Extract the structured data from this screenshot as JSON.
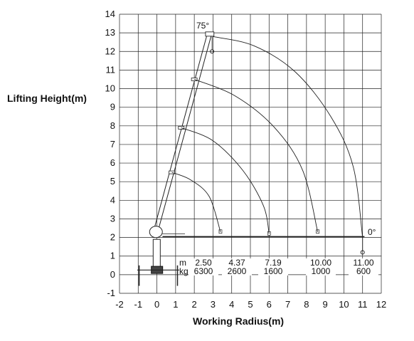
{
  "chart_data": {
    "type": "line",
    "xlabel": "Working Radius(m)",
    "ylabel": "Lifting Height(m)",
    "xlim": [
      -2,
      12
    ],
    "ylim": [
      -1,
      14
    ],
    "grid": true,
    "x_ticks": [
      "-2",
      "-1",
      "0",
      "1",
      "2",
      "3",
      "4",
      "5",
      "6",
      "7",
      "8",
      "9",
      "10",
      "11",
      "12"
    ],
    "y_ticks": [
      "-1",
      "0",
      "1",
      "2",
      "3",
      "4",
      "5",
      "6",
      "7",
      "8",
      "9",
      "10",
      "11",
      "12",
      "13",
      "14"
    ],
    "series": [
      {
        "points": [
          [
            0.8,
            5.5
          ],
          [
            1.8,
            5.1
          ],
          [
            2.8,
            4.2
          ],
          [
            3.4,
            2.3
          ]
        ]
      },
      {
        "points": [
          [
            1.3,
            7.9
          ],
          [
            3.0,
            7.2
          ],
          [
            4.6,
            5.6
          ],
          [
            5.7,
            3.7
          ],
          [
            6.0,
            2.2
          ]
        ]
      },
      {
        "points": [
          [
            2.0,
            10.5
          ],
          [
            4.2,
            9.6
          ],
          [
            6.3,
            7.9
          ],
          [
            7.8,
            5.6
          ],
          [
            8.6,
            2.3
          ]
        ]
      },
      {
        "points": [
          [
            3.0,
            12.8
          ],
          [
            5.2,
            12.3
          ],
          [
            7.4,
            10.9
          ],
          [
            9.3,
            8.5
          ],
          [
            10.5,
            5.8
          ],
          [
            11.0,
            2.0
          ]
        ]
      }
    ],
    "boom_angles": [
      "75°",
      "0°"
    ],
    "load_table": {
      "row_labels": [
        "m",
        "kg"
      ],
      "radius": [
        "2.50",
        "4.37",
        "7.19",
        "10.00",
        "11.00"
      ],
      "load": [
        "6300",
        "2600",
        "1600",
        "1000",
        "600"
      ]
    }
  }
}
